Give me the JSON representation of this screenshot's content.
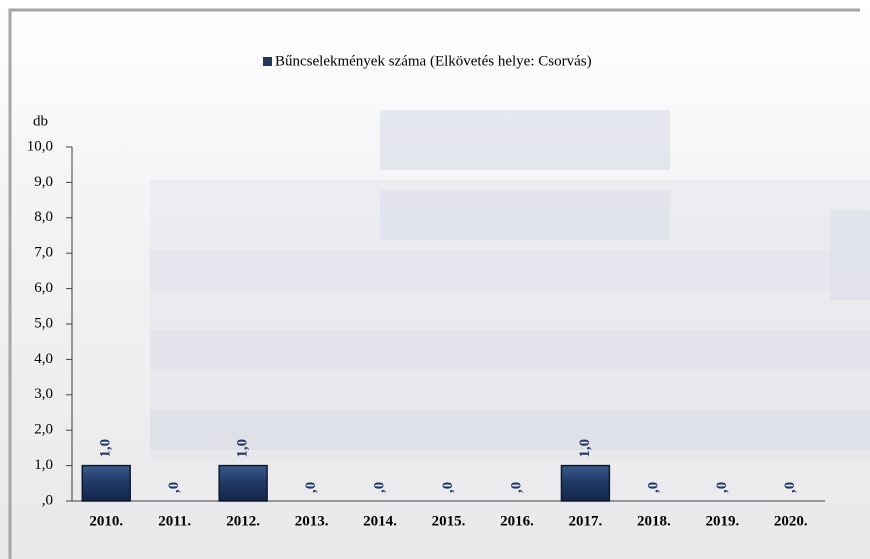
{
  "chart_data": {
    "type": "bar",
    "legend": "Bűncselekmények száma (Elkövetés helye: Csorvás)",
    "y_label": "db",
    "categories": [
      "2010.",
      "2011.",
      "2012.",
      "2013.",
      "2014.",
      "2015.",
      "2016.",
      "2017.",
      "2018.",
      "2019.",
      "2020."
    ],
    "values": [
      1,
      0,
      1,
      0,
      0,
      0,
      0,
      1,
      0,
      0,
      0
    ],
    "value_labels": [
      "1,0",
      ",0",
      "1,0",
      ",0",
      ",0",
      ",0",
      ",0",
      "1,0",
      ",0",
      ",0",
      ",0"
    ],
    "color": "#1f3864",
    "ylim": [
      0,
      10
    ],
    "yticks": [
      {
        "value": 0,
        "label": ",0"
      },
      {
        "value": 1,
        "label": "1,0"
      },
      {
        "value": 2,
        "label": "2,0"
      },
      {
        "value": 3,
        "label": "3,0"
      },
      {
        "value": 4,
        "label": "4,0"
      },
      {
        "value": 5,
        "label": "5,0"
      },
      {
        "value": 6,
        "label": "6,0"
      },
      {
        "value": 7,
        "label": "7,0"
      },
      {
        "value": 8,
        "label": "8,0"
      },
      {
        "value": 9,
        "label": "9,0"
      },
      {
        "value": 10,
        "label": "10,0"
      }
    ]
  }
}
